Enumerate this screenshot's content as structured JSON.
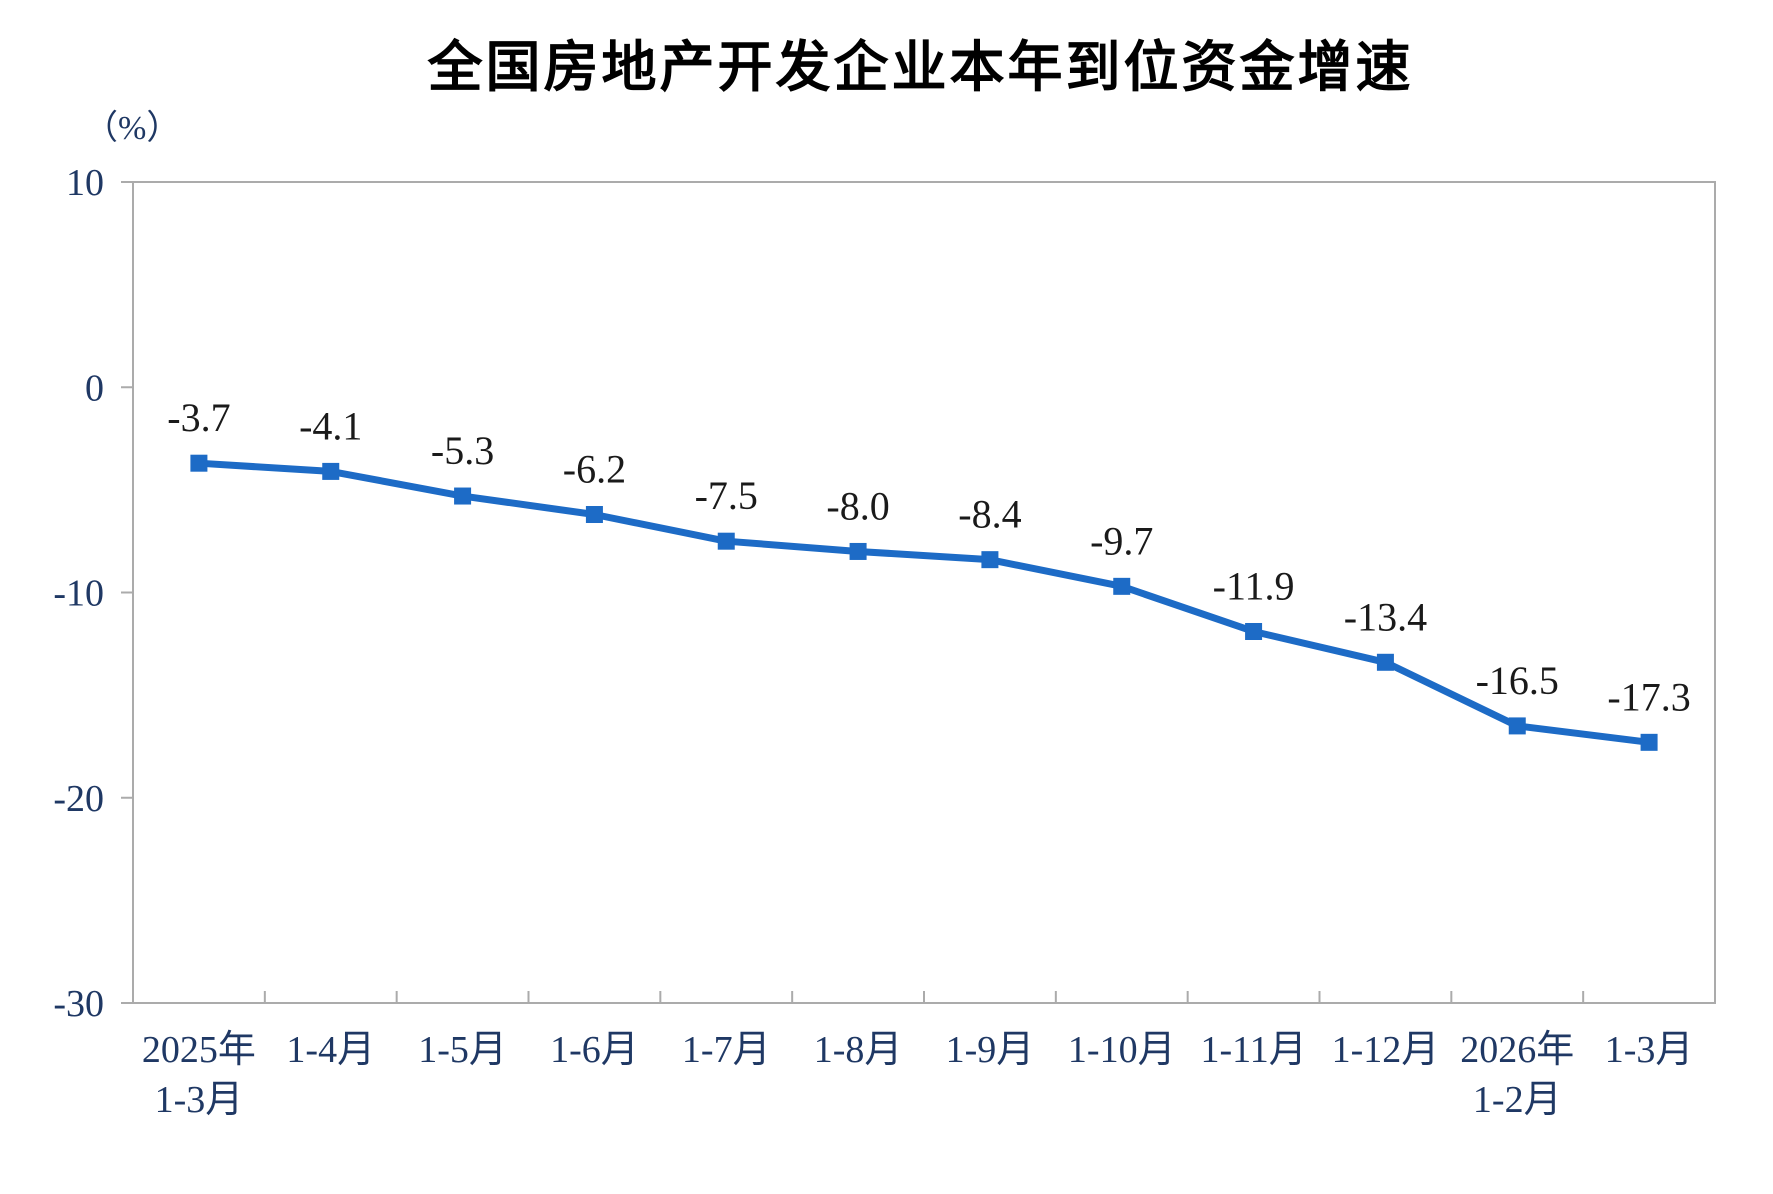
{
  "page": {
    "title": "全国房地产开发企业本年到位资金增速",
    "unit_label": "（%）"
  },
  "chart_data": {
    "type": "line",
    "title": "全国房地产开发企业本年到位资金增速",
    "unit": "（%）",
    "categories": [
      [
        "2025年",
        "1-3月"
      ],
      [
        "1-4月"
      ],
      [
        "1-5月"
      ],
      [
        "1-6月"
      ],
      [
        "1-7月"
      ],
      [
        "1-8月"
      ],
      [
        "1-9月"
      ],
      [
        "1-10月"
      ],
      [
        "1-11月"
      ],
      [
        "1-12月"
      ],
      [
        "2026年",
        "1-2月"
      ],
      [
        "1-3月"
      ]
    ],
    "values": [
      -3.7,
      -4.1,
      -5.3,
      -6.2,
      -7.5,
      -8.0,
      -8.4,
      -9.7,
      -11.9,
      -13.4,
      -16.5,
      -17.3
    ],
    "value_labels": [
      "-3.7",
      "-4.1",
      "-5.3",
      "-6.2",
      "-7.5",
      "-8.0",
      "-8.4",
      "-9.7",
      "-11.9",
      "-13.4",
      "-16.5",
      "-17.3"
    ],
    "ylim": [
      -30,
      10
    ],
    "yticks": [
      10,
      0,
      -10,
      -20,
      -30
    ],
    "xlabel": "",
    "ylabel": "（%）",
    "grid": false,
    "legend": null,
    "line_color": "#1d6bc6",
    "marker": "square",
    "marker_color": "#1d6bc6",
    "data_label_color": "#1a1a1a",
    "axis_line_color": "#ababab",
    "axis_label_color": "#1f3864"
  }
}
